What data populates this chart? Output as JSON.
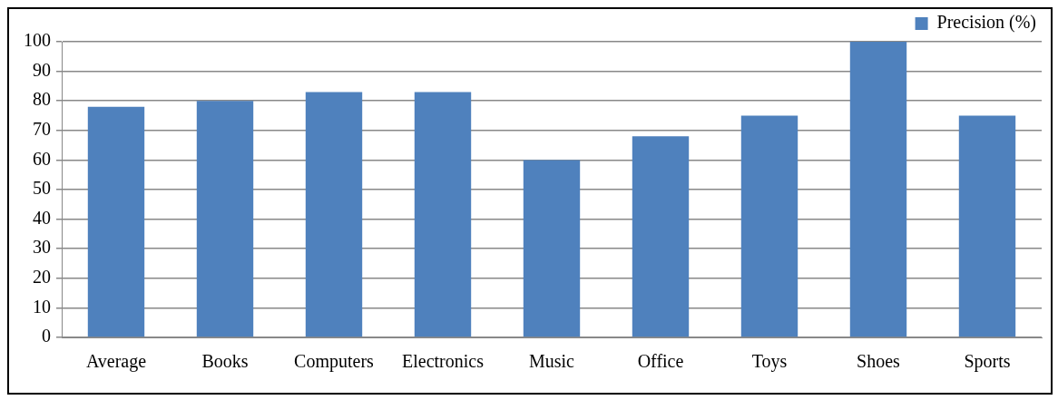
{
  "chart_data": {
    "type": "bar",
    "categories": [
      "Average",
      "Books",
      "Computers",
      "Electronics",
      "Music",
      "Office",
      "Toys",
      "Shoes",
      "Sports"
    ],
    "series": [
      {
        "name": "Precision (%)",
        "color": "#4f81bd",
        "values": [
          78,
          80,
          83,
          83,
          60,
          68,
          75,
          100,
          75
        ]
      }
    ],
    "ylim": [
      0,
      100
    ],
    "yticks": [
      0,
      10,
      20,
      30,
      40,
      50,
      60,
      70,
      80,
      90,
      100
    ],
    "grid": "y",
    "legend": "top"
  }
}
